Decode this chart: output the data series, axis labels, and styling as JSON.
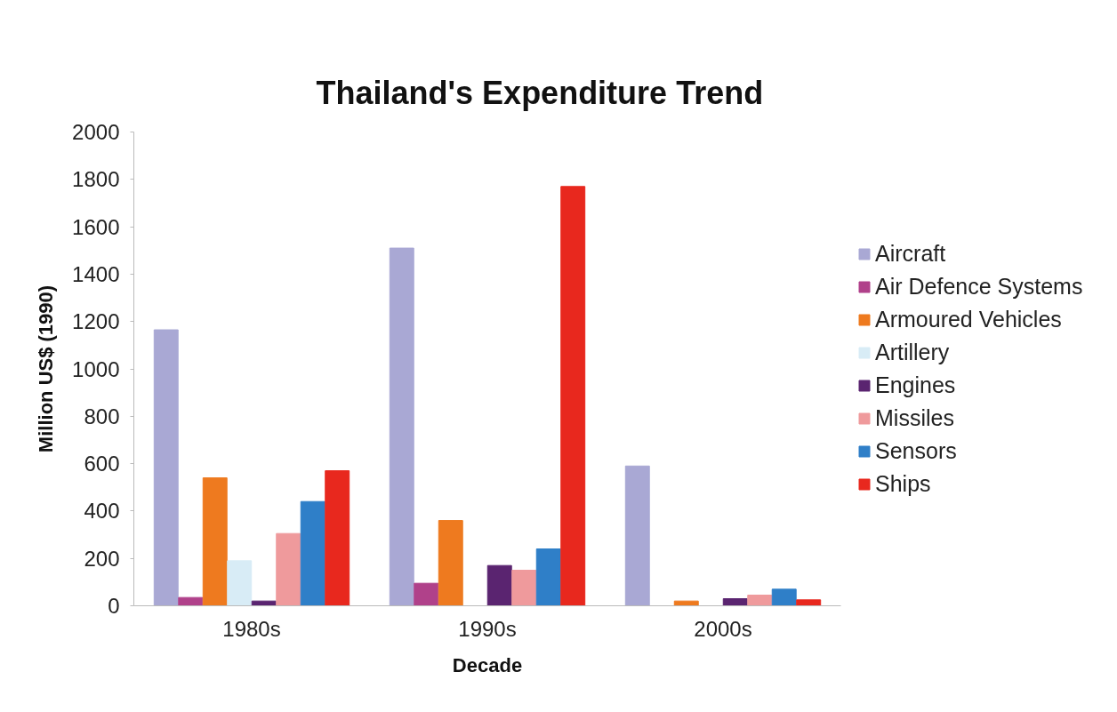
{
  "chart_data": {
    "type": "bar",
    "title": "Thailand's Expenditure Trend",
    "xlabel": "Decade",
    "ylabel": "Million US$ (1990)",
    "categories": [
      "1980s",
      "1990s",
      "2000s"
    ],
    "series": [
      {
        "name": "Aircraft",
        "color": "#a9a8d4",
        "values": [
          1165,
          1510,
          590
        ]
      },
      {
        "name": "Air Defence Systems",
        "color": "#b0418a",
        "values": [
          35,
          95,
          null
        ]
      },
      {
        "name": "Armoured Vehicles",
        "color": "#ee7a1f",
        "values": [
          540,
          360,
          20
        ]
      },
      {
        "name": "Artillery",
        "color": "#d8ecf6",
        "values": [
          190,
          null,
          null
        ]
      },
      {
        "name": "Engines",
        "color": "#5a2470",
        "values": [
          20,
          170,
          30
        ]
      },
      {
        "name": "Missiles",
        "color": "#ef9a9c",
        "values": [
          305,
          150,
          45
        ]
      },
      {
        "name": "Sensors",
        "color": "#2f7fc8",
        "values": [
          440,
          240,
          70
        ]
      },
      {
        "name": "Ships",
        "color": "#e8281e",
        "values": [
          570,
          1770,
          25
        ]
      }
    ],
    "ylim": [
      0,
      2000
    ],
    "yticks": [
      0,
      200,
      400,
      600,
      800,
      1000,
      1200,
      1400,
      1600,
      1800,
      2000
    ],
    "legend": "right"
  }
}
